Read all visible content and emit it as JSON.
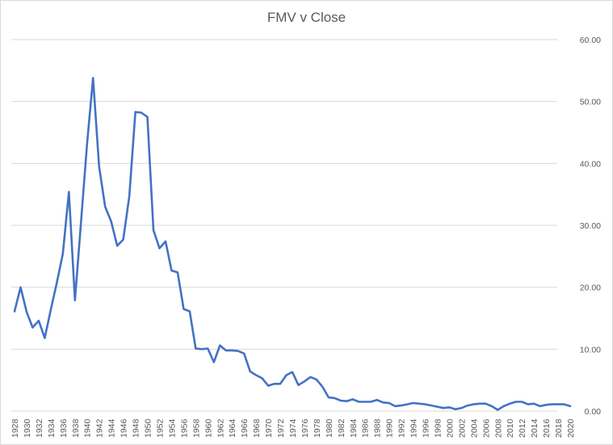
{
  "chart_data": {
    "type": "line",
    "title": "FMV v Close",
    "xlabel": "",
    "ylabel": "",
    "ylim": [
      0,
      60
    ],
    "yticks": [
      "0.00",
      "10.00",
      "20.00",
      "30.00",
      "40.00",
      "50.00",
      "60.00"
    ],
    "y_axis_position": "right",
    "grid": true,
    "legend": null,
    "line_color": "#4472C4",
    "x": [
      1928,
      1929,
      1930,
      1931,
      1932,
      1933,
      1934,
      1935,
      1936,
      1937,
      1938,
      1939,
      1940,
      1941,
      1942,
      1943,
      1944,
      1945,
      1946,
      1947,
      1948,
      1949,
      1950,
      1951,
      1952,
      1953,
      1954,
      1955,
      1956,
      1957,
      1958,
      1959,
      1960,
      1961,
      1962,
      1963,
      1964,
      1965,
      1966,
      1967,
      1968,
      1969,
      1970,
      1971,
      1972,
      1973,
      1974,
      1975,
      1976,
      1977,
      1978,
      1979,
      1980,
      1981,
      1982,
      1983,
      1984,
      1985,
      1986,
      1987,
      1988,
      1989,
      1990,
      1991,
      1992,
      1993,
      1994,
      1995,
      1996,
      1997,
      1998,
      1999,
      2000,
      2001,
      2002,
      2003,
      2004,
      2005,
      2006,
      2007,
      2008,
      2009,
      2010,
      2011,
      2012,
      2013,
      2014,
      2015,
      2016,
      2017,
      2018,
      2019,
      2020
    ],
    "xtick_labels": [
      "1928",
      "1930",
      "1932",
      "1934",
      "1936",
      "1938",
      "1940",
      "1942",
      "1944",
      "1946",
      "1948",
      "1950",
      "1952",
      "1954",
      "1956",
      "1958",
      "1960",
      "1962",
      "1964",
      "1966",
      "1968",
      "1970",
      "1972",
      "1974",
      "1976",
      "1978",
      "1980",
      "1982",
      "1984",
      "1986",
      "1988",
      "1990",
      "1992",
      "1994",
      "1996",
      "1998",
      "2000",
      "2002",
      "2004",
      "2006",
      "2008",
      "2010",
      "2012",
      "2014",
      "2016",
      "2018",
      "2020"
    ],
    "series": [
      {
        "name": "FMV v Close",
        "values": [
          16.1,
          20.0,
          16.0,
          13.5,
          14.6,
          11.8,
          16.4,
          20.7,
          25.4,
          35.4,
          17.9,
          30.5,
          43.0,
          53.8,
          39.5,
          33.0,
          30.6,
          26.7,
          27.7,
          34.7,
          48.3,
          48.2,
          47.5,
          29.2,
          26.3,
          27.4,
          22.7,
          22.4,
          16.5,
          16.1,
          10.1,
          10.0,
          10.1,
          7.9,
          10.6,
          9.8,
          9.8,
          9.7,
          9.3,
          6.4,
          5.8,
          5.3,
          4.1,
          4.4,
          4.4,
          5.8,
          6.3,
          4.2,
          4.8,
          5.5,
          5.1,
          3.9,
          2.2,
          2.1,
          1.7,
          1.6,
          1.9,
          1.5,
          1.5,
          1.5,
          1.8,
          1.4,
          1.3,
          0.8,
          0.9,
          1.1,
          1.3,
          1.2,
          1.1,
          0.9,
          0.7,
          0.5,
          0.6,
          0.3,
          0.5,
          0.9,
          1.1,
          1.2,
          1.2,
          0.8,
          0.2,
          0.8,
          1.2,
          1.5,
          1.5,
          1.1,
          1.2,
          0.8,
          1.0,
          1.1,
          1.1,
          1.1,
          0.8
        ]
      }
    ]
  }
}
